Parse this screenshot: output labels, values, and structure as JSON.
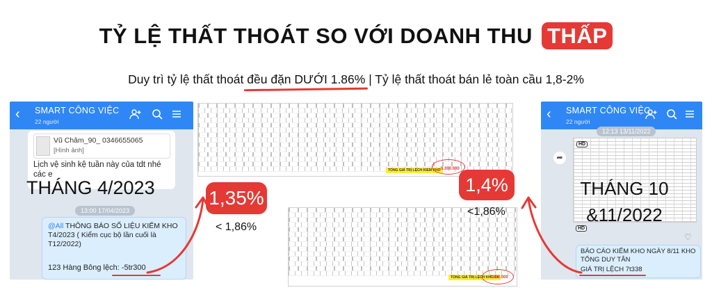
{
  "headline": {
    "main": "TỶ LỆ THẤT THOÁT SO VỚI DOANH THU",
    "highlight": "THẤP"
  },
  "subheadline": {
    "pre": "Duy trì tỷ lệ thất thoát ",
    "underlined": "đều đặn DƯỚI 1.86%",
    "post": " | Tỷ lệ thất thoát bán lẻ toàn cầu 1,8-2%"
  },
  "left_phone": {
    "title": "SMART CÔNG VIỆC",
    "members": "22 người",
    "sender": "Vũ Châm_90_ 0346655065",
    "image_label": "[Hình ảnh]",
    "message1": "Lịch vệ sinh kệ tuần này của tdt nhé các e",
    "timestamp": "13:00 17/04/2023",
    "message2_mention": "@All",
    "message2": " THÔNG BÁO SỐ LIỆU KIỂM KHO T4/2023 ( Kiểm cục bộ lần cuối là T12/2022)",
    "message2_line": "123 Hàng Bông lệch: -5tr300"
  },
  "left_month": "THÁNG 4/2023",
  "left_rate": "1,35%",
  "left_compare": "< 1,86%",
  "right_phone": {
    "title": "SMART CÔNG VIỆC",
    "members": "22 người",
    "timestamp": "12:13 13/11/2022",
    "hd_label": "HD",
    "message_line1": "BÁO CÁO KIỂM KHO NGÀY 8/11 KHO TỔNG DUY TÂN",
    "message_line2": "GIÁ TRỊ LỆCH 7t338"
  },
  "right_month": "THÁNG 10 &11/2022",
  "right_rate": "1,4%",
  "right_compare": "<1,86%",
  "sheet_top": {
    "total_label": "TỔNG GIÁ TRỊ LỆCH KIỂM KHO",
    "total_value": "-5.300.000"
  },
  "sheet_bottom": {
    "total_label": "TỔNG GIÁ TRỊ LỆCH KHO T4",
    "total_value": "-7.338.000"
  },
  "colors": {
    "accent": "#e53935",
    "app_bar": "#2f87f5",
    "yellow": "#ffee33"
  }
}
